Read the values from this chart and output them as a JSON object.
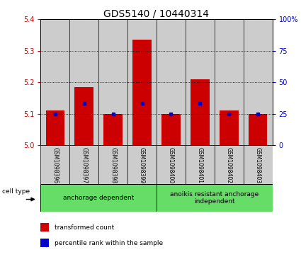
{
  "title": "GDS5140 / 10440314",
  "samples": [
    "GSM1098396",
    "GSM1098397",
    "GSM1098398",
    "GSM1098399",
    "GSM1098400",
    "GSM1098401",
    "GSM1098402",
    "GSM1098403"
  ],
  "transformed_counts": [
    5.11,
    5.185,
    5.1,
    5.335,
    5.1,
    5.21,
    5.11,
    5.1
  ],
  "percentile_ranks": [
    25,
    33,
    25,
    33,
    25,
    33,
    25,
    25
  ],
  "ylim_left": [
    5.0,
    5.4
  ],
  "yticks_left": [
    5.0,
    5.1,
    5.2,
    5.3,
    5.4
  ],
  "ylim_right": [
    0,
    100
  ],
  "yticks_right": [
    0,
    25,
    50,
    75,
    100
  ],
  "groups": [
    {
      "label": "anchorage dependent",
      "span": [
        0,
        3
      ]
    },
    {
      "label": "anoikis resistant anchorage\nindependent",
      "span": [
        4,
        7
      ]
    }
  ],
  "group_color": "#66dd66",
  "bar_color": "#cc0000",
  "percentile_color": "#0000cc",
  "sample_bg_color": "#cccccc",
  "title_fontsize": 10,
  "axis_left_color": "#cc0000",
  "axis_right_color": "#0000cc",
  "legend_items": [
    "transformed count",
    "percentile rank within the sample"
  ],
  "cell_type_label": "cell type"
}
